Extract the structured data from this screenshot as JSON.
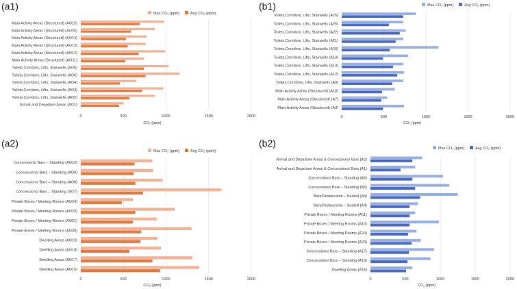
{
  "colors": {
    "orange_max": "#f2b095",
    "orange_avg": "#de7a3f",
    "blue_max": "#97aee3",
    "blue_avg": "#4a67c0",
    "grid": "#e3e3e3",
    "text": "#333333"
  },
  "chart_data": [
    {
      "id": "a1",
      "panel_label": "(a1)",
      "type": "bar",
      "orientation": "horizontal",
      "palette": "orange",
      "legend": [
        "Max CO₂ (ppm)",
        "Avg CO₂ (ppm)"
      ],
      "xlabel": "CO₂ (ppm)",
      "xlim": [
        0,
        2000
      ],
      "xticks": [
        "0",
        "500",
        "1000",
        "1500",
        "2000"
      ],
      "categories": [
        "Main Activity Areas (Structured) (AO15)",
        "Main Activity Areas (Structured) (AO25)",
        "Main Activity Areas (Structured) (AO14)",
        "Main Activity Areas (Structured) (AO13)",
        "Main Activity Areas (Structured) (AO12)",
        "Main Activity Areas (Structured) (AO11)",
        "Toilets,Corridors, Lifts, Stairwells (AO6)",
        "Toilets,Corridors, Lifts, Stairwells (AO5)",
        "Toilets,Corridors, Lifts, Stairwells (AO4)",
        "Toilets,Corridors, Lifts, Stairwells (AO3)",
        "Toilets,Corridors, Lifts, Stairwells (AO2)",
        "Arrival and Departure Areas (AO1)"
      ],
      "series": [
        {
          "name": "Max CO₂ (ppm)",
          "values": [
            980,
            870,
            770,
            760,
            990,
            740,
            1030,
            1160,
            650,
            970,
            870,
            500
          ]
        },
        {
          "name": "Avg CO₂ (ppm)",
          "values": [
            690,
            590,
            530,
            550,
            680,
            520,
            740,
            760,
            460,
            720,
            570,
            450
          ]
        }
      ]
    },
    {
      "id": "b1",
      "panel_label": "(b1)",
      "type": "bar",
      "orientation": "horizontal",
      "palette": "blue",
      "legend": [
        "Max CO₂ (ppm)",
        "Avg CO₂ (ppm)"
      ],
      "xlabel": "CO₂ (ppm)",
      "xlim": [
        0,
        2000
      ],
      "xticks": [
        "0",
        "500",
        "1000",
        "1500",
        "2000"
      ],
      "categories": [
        "Toilets,Corridors, Lifts, Stairwells (A26)",
        "Toilets,Corridors, Lifts, Stairwells (A25)",
        "Toilets,Corridors, Lifts, Stairwells (A22)",
        "Toilets,Corridors, Lifts, Stairwells (A21)",
        "Toilets,Corridors, Lifts, Stairwells (A20)",
        "Toilets,Corridors, Lifts, Stairwells (A19)",
        "Toilets,Corridors, Lifts, Stairwells (A13)",
        "Toilets,Corridors, Lifts, Stairwells (A12)",
        "Toilets,Corridors, Lifts, Stairwells (A9)",
        "Main Activity Areas (Structured) (A18)",
        "Main Activity Areas (Structured) (A7)",
        "Main Activity Areas (Structured) (A3)"
      ],
      "series": [
        {
          "name": "Max CO₂ (ppm)",
          "values": [
            880,
            730,
            760,
            730,
            1150,
            790,
            730,
            740,
            730,
            630,
            540,
            740
          ]
        },
        {
          "name": "Avg CO₂ (ppm)",
          "values": [
            730,
            560,
            690,
            640,
            570,
            490,
            610,
            660,
            600,
            480,
            470,
            490
          ]
        }
      ]
    },
    {
      "id": "a2",
      "panel_label": "(a2)",
      "type": "bar",
      "orientation": "horizontal",
      "palette": "orange",
      "legend": [
        "Max CO₂ (ppm)",
        "Avg CO₂ (ppm)"
      ],
      "xlabel": "CO₂ (ppm)",
      "xlim": [
        0,
        2000
      ],
      "xticks": [
        "0",
        "500",
        "1000",
        "1500",
        "2000"
      ],
      "categories": [
        "Concessions/ Bars – Standing (AO10)",
        "Concessions/ Bars – Standing (AO9)",
        "Concessions/ Bars – Standing (AO8)",
        "Concessions/ Bars – Standing (AO7)",
        "Private Boxes / Meeting Rooms (AO24)",
        "Private Boxes / Meeting Rooms (AO23)",
        "Private Boxes / Meeting Rooms (AO21)",
        "Private Boxes / Meeting Rooms (AO20)",
        "Dwelling Areas (AO19)",
        "Dwelling Areas (AO18)",
        "Dwelling Areas (AO17)",
        "Dwelling Areas (AO16)"
      ],
      "series": [
        {
          "name": "Max CO₂ (ppm)",
          "values": [
            840,
            850,
            960,
            1650,
            610,
            1100,
            890,
            1300,
            900,
            940,
            1310,
            1390
          ]
        },
        {
          "name": "Avg CO₂ (ppm)",
          "values": [
            630,
            620,
            640,
            730,
            480,
            640,
            610,
            710,
            700,
            570,
            840,
            930
          ]
        }
      ]
    },
    {
      "id": "b2",
      "panel_label": "(b2)",
      "type": "bar",
      "orientation": "horizontal",
      "palette": "blue",
      "legend": [
        "Max CO₂ (ppm)",
        "Avg CO₂ (ppm)"
      ],
      "xlabel": "CO₂ (ppm)",
      "xlim": [
        0,
        2000
      ],
      "xticks": [
        "0",
        "500",
        "1000",
        "1500",
        "2000"
      ],
      "categories": [
        "Arrival and Departure Areas & Concessions/ Bars (A2)",
        "Arrival and Departure Areas & Concessions/ Bars (A1)",
        "Concessions/ Bars – Standing (A6)",
        "Concessions/ Bars – Standing (A5)",
        "Bars/Restaurants – Seated  (A8)",
        "Bars/Restaurants – Seated  (A4)",
        "Private Boxes / Meeting Rooms (A11)",
        "Private Boxes / Meeting Rooms (A10)",
        "Private Boxes / Meeting Rooms (A24)",
        "Private Boxes / Meeting Rooms (A23)",
        "Concessions/ Bars – Standing (A17)",
        "Concessions/ Bars – Standing (A16)",
        "Dwelling Areas (A15)"
      ],
      "series": [
        {
          "name": "Max CO₂ (ppm)",
          "values": [
            740,
            640,
            1040,
            1130,
            1250,
            680,
            640,
            980,
            660,
            720,
            910,
            860,
            600
          ]
        },
        {
          "name": "Avg CO₂ (ppm)",
          "values": [
            600,
            430,
            600,
            640,
            710,
            560,
            560,
            560,
            540,
            590,
            550,
            530,
            510
          ]
        }
      ]
    }
  ]
}
